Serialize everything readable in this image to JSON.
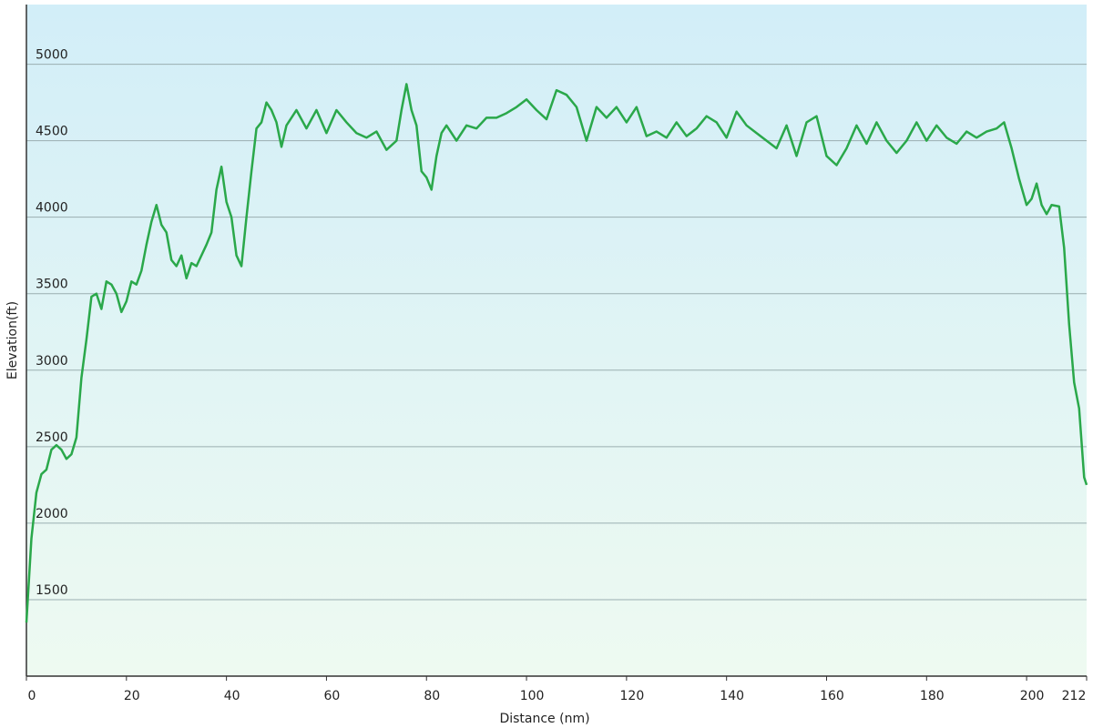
{
  "chart_data": {
    "type": "line",
    "x_label": "Distance  (nm)",
    "y_label": "Elevation(ft)",
    "x": [
      0,
      1,
      2,
      3,
      4,
      5,
      6,
      7,
      8,
      9,
      10,
      11,
      12,
      13,
      14,
      15,
      16,
      17,
      18,
      19,
      20,
      21,
      22,
      23,
      24,
      25,
      26,
      27,
      28,
      29,
      30,
      31,
      32,
      33,
      34,
      36,
      37,
      38,
      39,
      40,
      41,
      42,
      43,
      44,
      45,
      46,
      47,
      48,
      49,
      50,
      51,
      52,
      54,
      56,
      58,
      60,
      62,
      64,
      66,
      68,
      70,
      72,
      74,
      75,
      76,
      77,
      78,
      79,
      80,
      81,
      82,
      83,
      84,
      86,
      88,
      90,
      92,
      94,
      96,
      98,
      100,
      102,
      104,
      106,
      108,
      110,
      112,
      114,
      116,
      118,
      120,
      122,
      124,
      126,
      128,
      130,
      132,
      134,
      136,
      138,
      140,
      142,
      144,
      146,
      148,
      150,
      152,
      154,
      156,
      158,
      160,
      162,
      164,
      166,
      168,
      170,
      172,
      174,
      176,
      178,
      180,
      182,
      184,
      186,
      188,
      190,
      192,
      194,
      195.5,
      197,
      198.5,
      200,
      201,
      202,
      203,
      204,
      205,
      206.5,
      207.5,
      208.5,
      209.5,
      210.5,
      211.5,
      212
    ],
    "series": [
      {
        "name": "Elevation",
        "color": "#2aa84a",
        "values": [
          1350,
          1900,
          2200,
          2320,
          2350,
          2480,
          2510,
          2480,
          2420,
          2450,
          2560,
          2950,
          3200,
          3480,
          3500,
          3400,
          3580,
          3560,
          3500,
          3380,
          3450,
          3580,
          3560,
          3650,
          3820,
          3970,
          4080,
          3950,
          3900,
          3720,
          3680,
          3750,
          3600,
          3700,
          3680,
          3820,
          3900,
          4180,
          4330,
          4100,
          4000,
          3750,
          3680,
          4000,
          4300,
          4580,
          4620,
          4750,
          4700,
          4620,
          4460,
          4600,
          4700,
          4580,
          4700,
          4550,
          4700,
          4620,
          4550,
          4520,
          4560,
          4440,
          4500,
          4700,
          4870,
          4700,
          4600,
          4300,
          4260,
          4180,
          4400,
          4550,
          4600,
          4500,
          4600,
          4580,
          4650,
          4650,
          4680,
          4720,
          4770,
          4700,
          4640,
          4830,
          4800,
          4720,
          4500,
          4720,
          4650,
          4720,
          4620,
          4720,
          4530,
          4560,
          4520,
          4620,
          4530,
          4580,
          4660,
          4620,
          4520,
          4690,
          4600,
          4550,
          4500,
          4450,
          4600,
          4400,
          4620,
          4660,
          4400,
          4340,
          4450,
          4600,
          4480,
          4620,
          4500,
          4420,
          4500,
          4620,
          4500,
          4600,
          4520,
          4480,
          4560,
          4520,
          4560,
          4580,
          4620,
          4450,
          4250,
          4080,
          4120,
          4220,
          4080,
          4020,
          4080,
          4070,
          3800,
          3300,
          2920,
          2750,
          2300,
          2250
        ]
      }
    ],
    "xlim": [
      0,
      212
    ],
    "xticks": [
      0,
      20,
      40,
      60,
      80,
      100,
      120,
      140,
      160,
      180,
      200,
      212
    ],
    "ylim": [
      1000,
      5390
    ],
    "yticks": [
      1500,
      2000,
      2500,
      3000,
      3500,
      4000,
      4500,
      5000
    ],
    "grid": true
  }
}
